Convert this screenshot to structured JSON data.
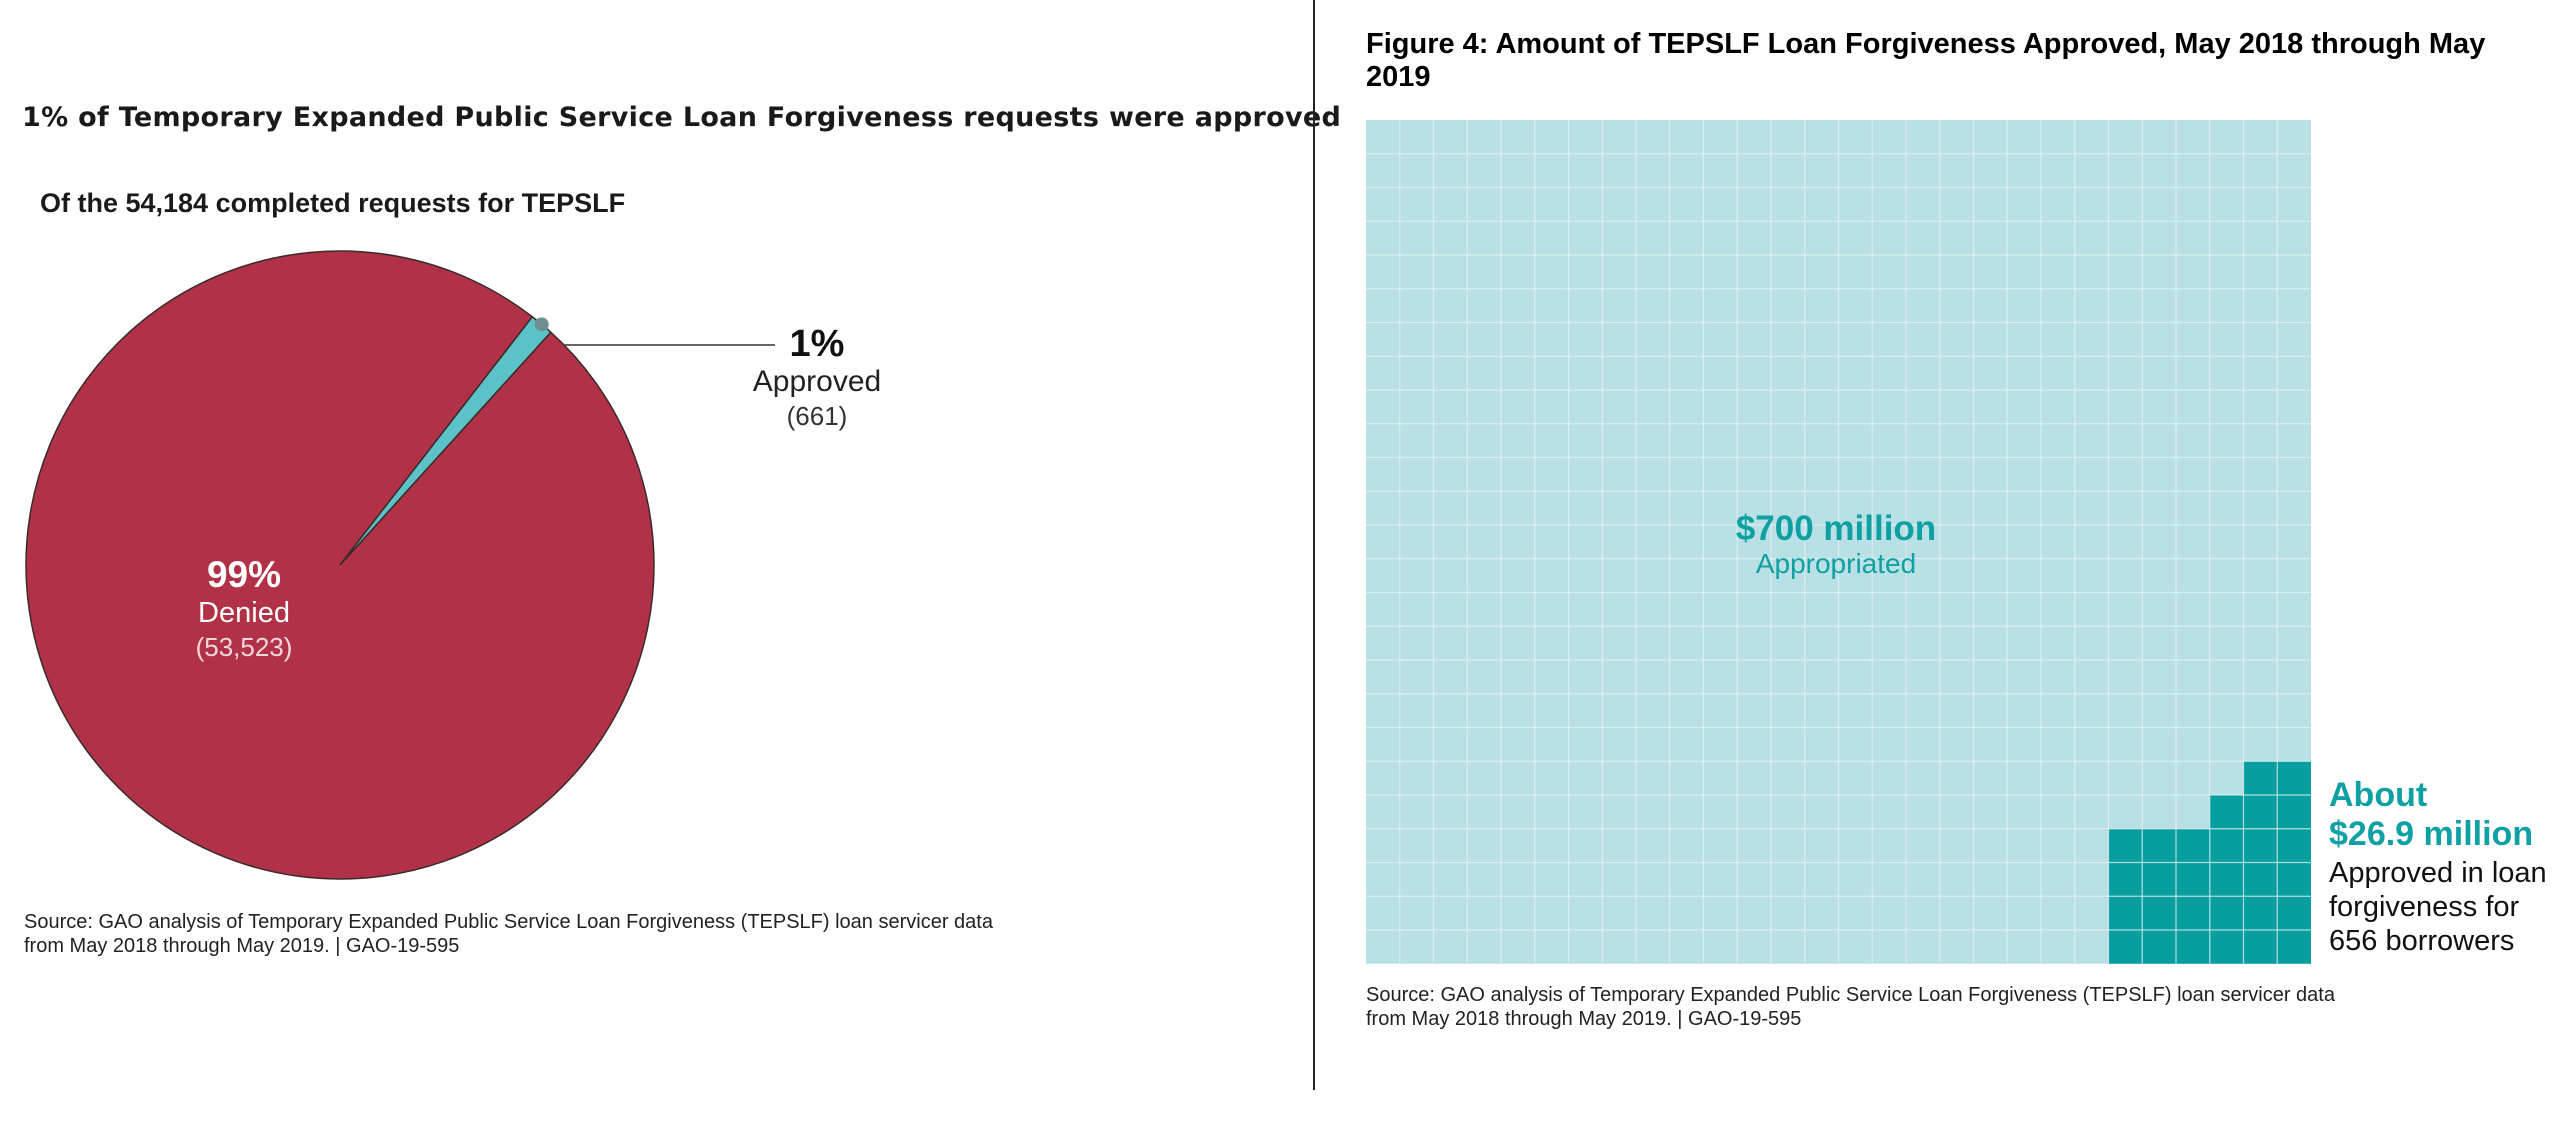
{
  "left_panel": {
    "heading": "1% of Temporary Expanded Public Service Loan Forgiveness requests were approved",
    "source_lines": [
      "Source: GAO analysis of Temporary Expanded Public Service Loan Forgiveness (TEPSLF) loan servicer data",
      "from May 2018 through May 2019.  |  GAO-19-595"
    ]
  },
  "right_panel": {
    "source_lines": [
      "Source: GAO analysis of Temporary Expanded Public Service Loan Forgiveness (TEPSLF) loan servicer data",
      "from May 2018 through May 2019.  |  GAO-19-595"
    ]
  },
  "colors": {
    "denied": "#b13246",
    "approved": "#5bc3c8",
    "grid_background": "#b9e0e4",
    "grid_approved": "#069e9f",
    "grid_text": "#0fa0a3"
  },
  "chart_data": [
    {
      "type": "pie",
      "title": "Of the 54,184 completed requests for TEPSLF",
      "slices": [
        {
          "label": "Denied",
          "percent_label": "99%",
          "count_label": "(53,523)",
          "value": 53523
        },
        {
          "label": "Approved",
          "percent_label": "1%",
          "count_label": "(661)",
          "value": 661
        }
      ]
    },
    {
      "type": "waffle",
      "title": "Figure 4: Amount of TEPSLF Loan Forgiveness Approved, May 2018 through May 2019",
      "total": {
        "value_label": "$700 million",
        "label": "Appropriated",
        "value": 700
      },
      "approved": {
        "value_label_lines": [
          "About",
          "$26.9 million"
        ],
        "desc_lines": [
          "Approved in loan",
          "forgiveness for",
          "656 borrowers"
        ],
        "value": 26.9
      },
      "unit": "million dollars"
    }
  ]
}
